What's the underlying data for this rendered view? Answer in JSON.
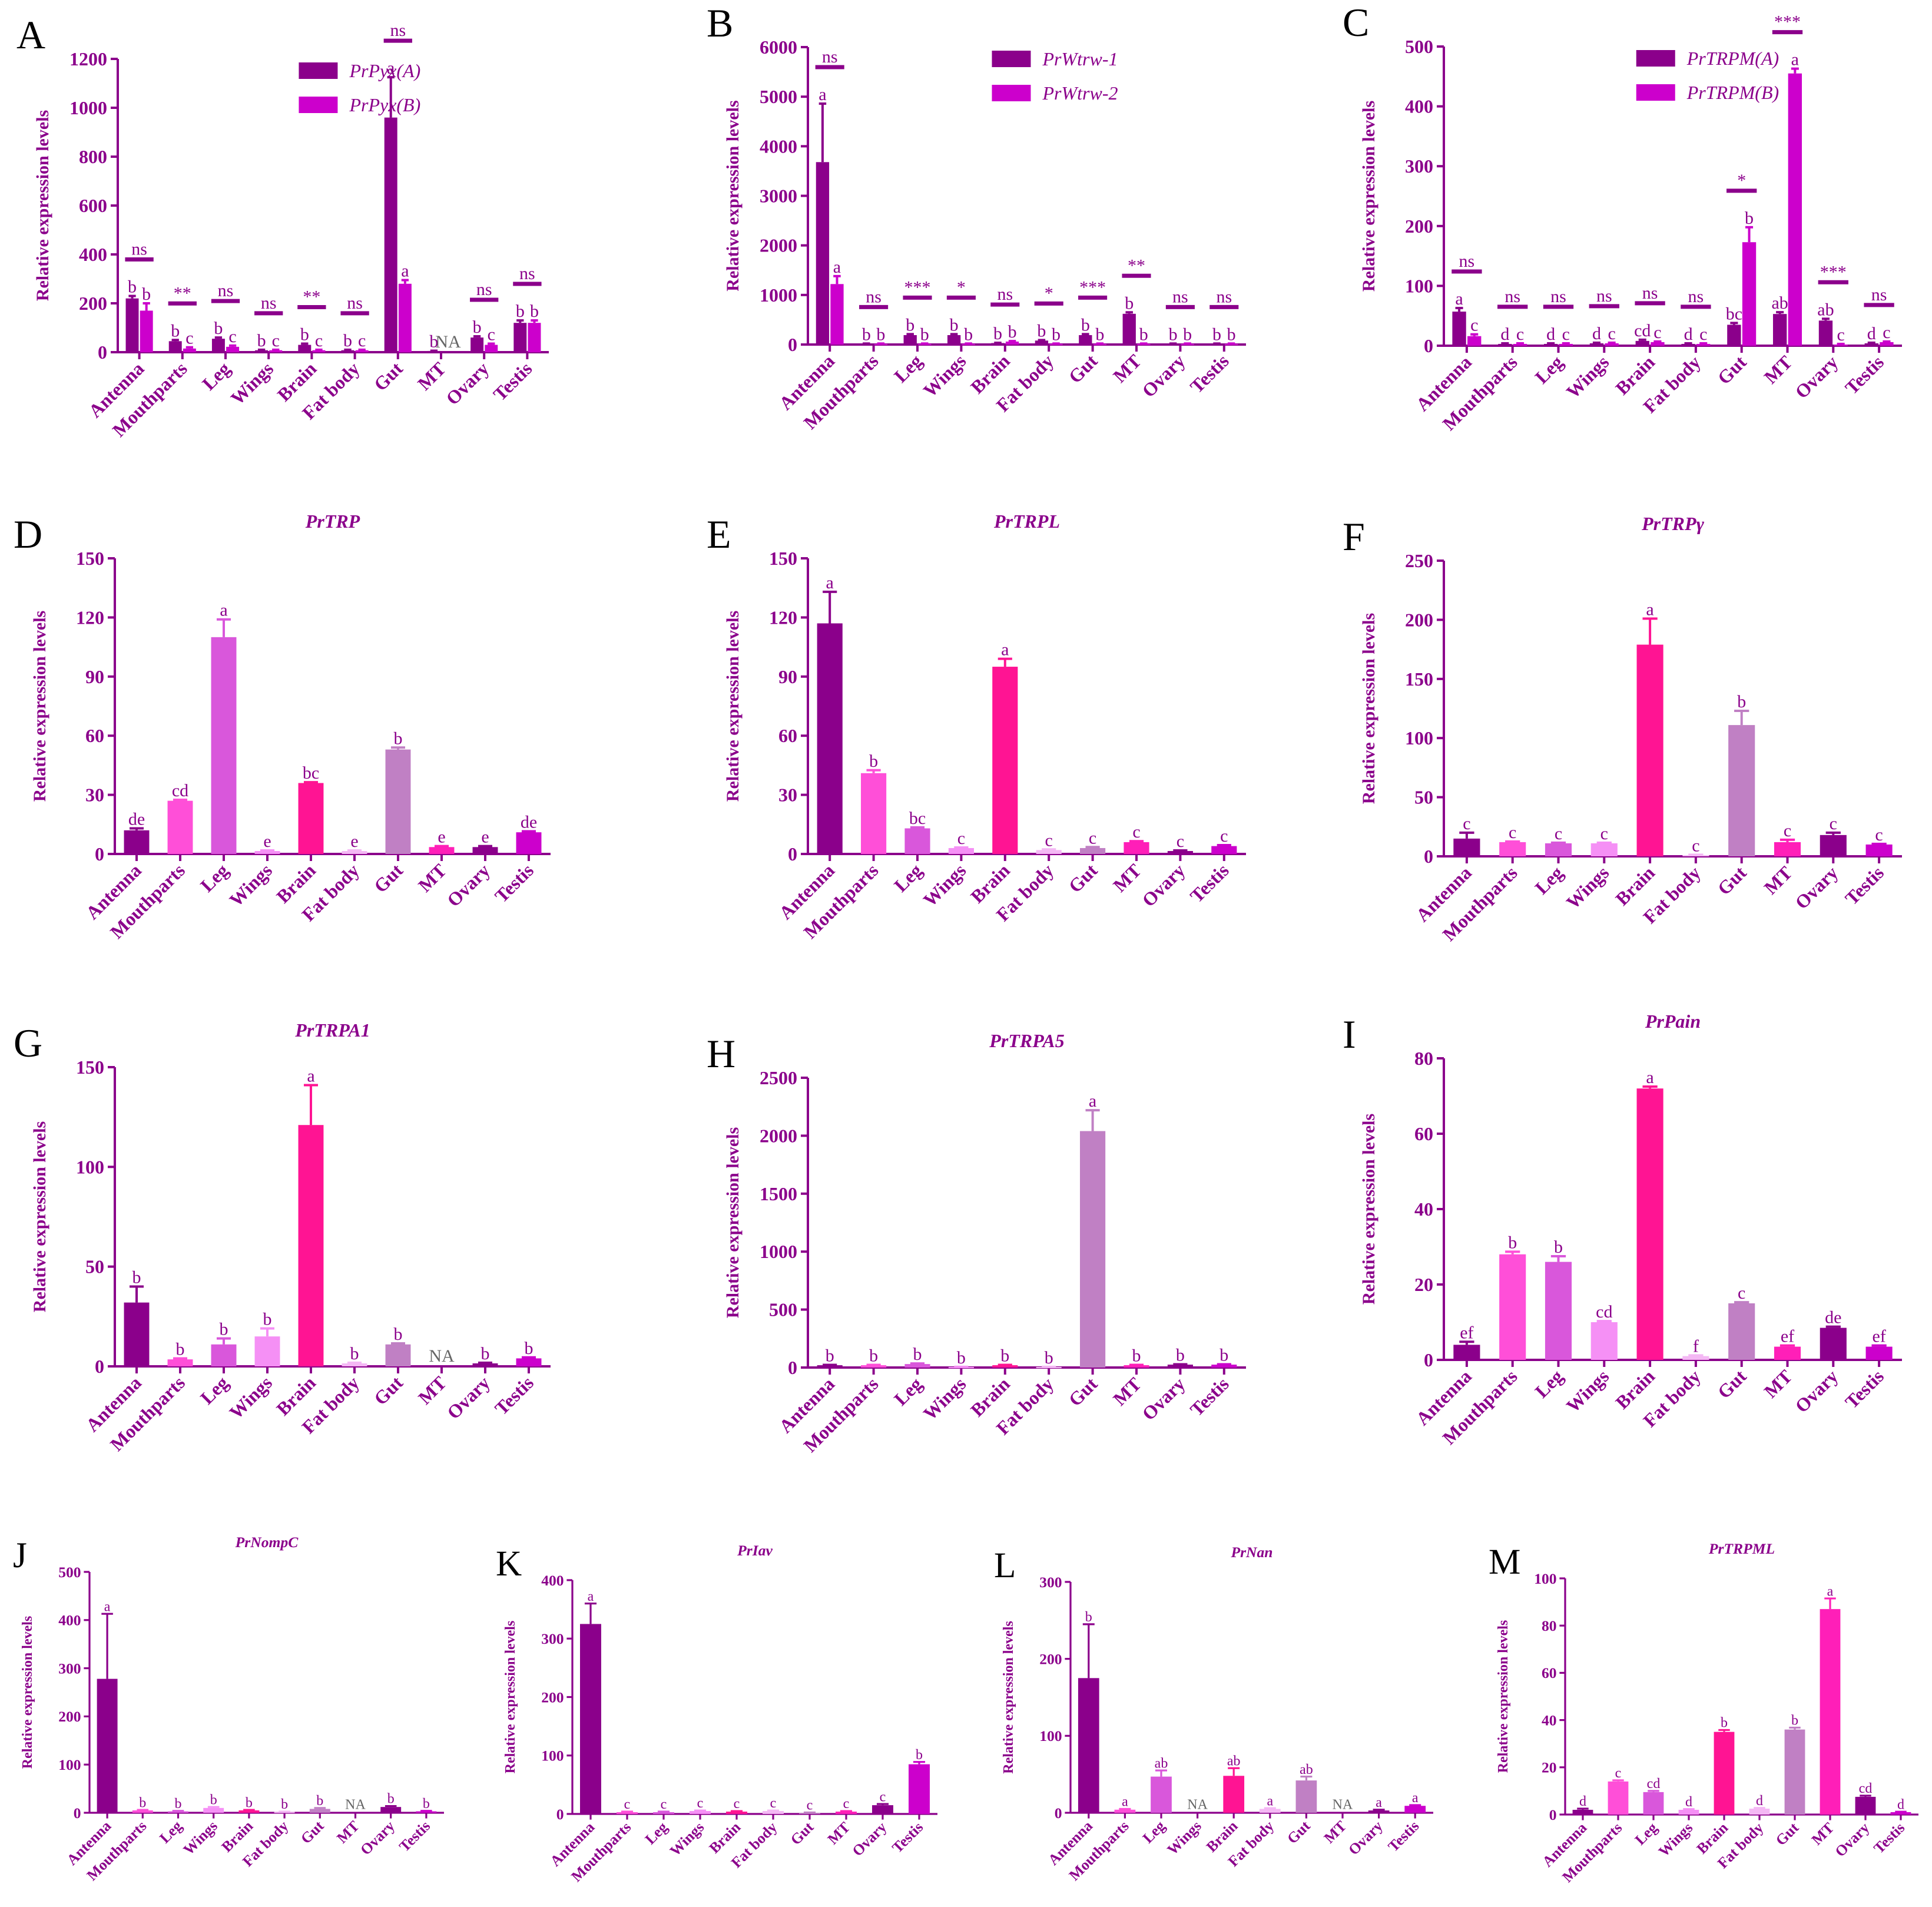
{
  "figure": {
    "colors": {
      "axis": "#8B008B",
      "text": "#8B008B",
      "letter": "#000000",
      "pair_a": "#8B008B",
      "pair_b": "#CC00CC",
      "tissue": {
        "Antenna": "#8B008B",
        "Mouthparts": "#FF4FD8",
        "Leg": "#D957DB",
        "Wings": "#F590F5",
        "Brain": "#FF1493",
        "Fat body": "#F4B8F4",
        "Gut": "#C080C4",
        "MT": "#FF1FB8",
        "Ovary": "#8B008B",
        "Testis": "#CC00CC"
      }
    },
    "ylabel": "Relative expression levels",
    "tissues": [
      "Antenna",
      "Mouthparts",
      "Leg",
      "Wings",
      "Brain",
      "Fat body",
      "Gut",
      "MT",
      "Ovary",
      "Testis"
    ]
  },
  "chart_data": [
    {
      "panel": "A",
      "type": "bar",
      "title": "",
      "ylim": [
        0,
        1200
      ],
      "yticks": [
        0,
        200,
        400,
        600,
        800,
        1000,
        1200
      ],
      "categories": [
        "Antenna",
        "Mouthparts",
        "Leg",
        "Wings",
        "Brain",
        "Fat body",
        "Gut",
        "MT",
        "Ovary",
        "Testis"
      ],
      "legend": [
        "PrPyx(A)",
        "PrPyx(B)"
      ],
      "series": [
        {
          "name": "PrPyx(A)",
          "values": [
            220,
            45,
            55,
            8,
            30,
            8,
            960,
            5,
            60,
            120
          ],
          "errors": [
            10,
            5,
            5,
            2,
            5,
            2,
            165,
            1,
            5,
            10
          ],
          "labels": [
            "b",
            "b",
            "b",
            "b",
            "b",
            "b",
            "a",
            "b",
            "b",
            "b"
          ]
        },
        {
          "name": "PrPyx(B)",
          "values": [
            170,
            15,
            22,
            8,
            8,
            8,
            280,
            0,
            30,
            120
          ],
          "errors": [
            30,
            5,
            5,
            2,
            2,
            2,
            15,
            0,
            5,
            10
          ],
          "labels": [
            "b",
            "c",
            "c",
            "c",
            "c",
            "c",
            "a",
            "NA",
            "c",
            "b"
          ]
        }
      ],
      "sig": [
        "ns",
        "**",
        "ns",
        "ns",
        "**",
        "ns",
        "ns",
        "",
        "ns",
        "ns"
      ]
    },
    {
      "panel": "B",
      "type": "bar",
      "title": "",
      "ylim": [
        0,
        6000
      ],
      "yticks": [
        0,
        1000,
        2000,
        3000,
        4000,
        5000,
        6000
      ],
      "categories": [
        "Antenna",
        "Mouthparts",
        "Leg",
        "Wings",
        "Brain",
        "Fat body",
        "Gut",
        "MT",
        "Ovary",
        "Testis"
      ],
      "legend": [
        "PrWtrw-1",
        "PrWtrw-2"
      ],
      "series": [
        {
          "name": "PrWtrw-1",
          "values": [
            3680,
            15,
            190,
            190,
            30,
            80,
            190,
            620,
            15,
            15
          ],
          "errors": [
            1180,
            5,
            20,
            20,
            5,
            10,
            20,
            30,
            5,
            5
          ],
          "labels": [
            "a",
            "b",
            "b",
            "b",
            "b",
            "b",
            "b",
            "b",
            "b",
            "b"
          ]
        },
        {
          "name": "PrWtrw-2",
          "values": [
            1220,
            15,
            15,
            15,
            60,
            15,
            15,
            15,
            15,
            15
          ],
          "errors": [
            160,
            5,
            5,
            5,
            10,
            5,
            5,
            5,
            5,
            5
          ],
          "labels": [
            "a",
            "b",
            "b",
            "b",
            "b",
            "b",
            "b",
            "b",
            "b",
            "b"
          ]
        }
      ],
      "sig": [
        "ns",
        "ns",
        "***",
        "*",
        "ns",
        "*",
        "***",
        "**",
        "ns",
        "ns"
      ]
    },
    {
      "panel": "C",
      "type": "bar",
      "title": "",
      "ylim": [
        0,
        500
      ],
      "yticks": [
        0,
        100,
        200,
        300,
        400,
        500
      ],
      "categories": [
        "Antenna",
        "Mouthparts",
        "Leg",
        "Wings",
        "Brain",
        "Fat body",
        "Gut",
        "MT",
        "Ovary",
        "Testis"
      ],
      "legend": [
        "PrTRPM(A)",
        "PrTRPM(B)"
      ],
      "series": [
        {
          "name": "PrTRPM(A)",
          "values": [
            57,
            3,
            3,
            4,
            8,
            3,
            35,
            53,
            42,
            4
          ],
          "errors": [
            6,
            1,
            1,
            1,
            2,
            1,
            3,
            3,
            3,
            1
          ],
          "labels": [
            "a",
            "d",
            "d",
            "d",
            "cd",
            "d",
            "bc",
            "ab",
            "ab",
            "d"
          ]
        },
        {
          "name": "PrTRPM(B)",
          "values": [
            16,
            3,
            3,
            4,
            6,
            3,
            173,
            455,
            2,
            6
          ],
          "errors": [
            3,
            1,
            1,
            1,
            1,
            1,
            25,
            8,
            1,
            1
          ],
          "labels": [
            "c",
            "c",
            "c",
            "c",
            "c",
            "c",
            "b",
            "a",
            "c",
            "c"
          ]
        }
      ],
      "sig": [
        "ns",
        "ns",
        "ns",
        "ns",
        "ns",
        "ns",
        "*",
        "***",
        "***",
        "ns"
      ]
    },
    {
      "panel": "D",
      "type": "bar",
      "title": "PrTRP",
      "ylim": [
        0,
        150
      ],
      "yticks": [
        0,
        30,
        60,
        90,
        120,
        150
      ],
      "categories": [
        "Antenna",
        "Mouthparts",
        "Leg",
        "Wings",
        "Brain",
        "Fat body",
        "Gut",
        "MT",
        "Ovary",
        "Testis"
      ],
      "values": [
        12,
        27,
        110,
        1.5,
        36,
        1.5,
        53,
        3.5,
        3.5,
        11
      ],
      "errors": [
        1,
        0.5,
        9,
        0.3,
        0.4,
        0.3,
        1,
        0.5,
        0.5,
        0.5
      ],
      "labels": [
        "de",
        "cd",
        "a",
        "e",
        "bc",
        "e",
        "b",
        "e",
        "e",
        "de"
      ]
    },
    {
      "panel": "E",
      "type": "bar",
      "title": "PrTRPL",
      "ylim": [
        0,
        150
      ],
      "yticks": [
        0,
        30,
        60,
        90,
        120,
        150
      ],
      "categories": [
        "Antenna",
        "Mouthparts",
        "Leg",
        "Wings",
        "Brain",
        "Fat body",
        "Gut",
        "MT",
        "Ovary",
        "Testis"
      ],
      "values": [
        117,
        41,
        13,
        3,
        95,
        2,
        3,
        6,
        1.5,
        4
      ],
      "errors": [
        16,
        1.5,
        0.5,
        0.3,
        4,
        0.3,
        0.5,
        0.5,
        0.3,
        0.5
      ],
      "labels": [
        "a",
        "b",
        "bc",
        "c",
        "a",
        "c",
        "c",
        "c",
        "c",
        "c"
      ]
    },
    {
      "panel": "F",
      "type": "bar",
      "title": "PrTRPγ",
      "ylim": [
        0,
        250
      ],
      "yticks": [
        0,
        50,
        100,
        150,
        200,
        250
      ],
      "categories": [
        "Antenna",
        "Mouthparts",
        "Leg",
        "Wings",
        "Brain",
        "Fat body",
        "Gut",
        "MT",
        "Ovary",
        "Testis"
      ],
      "values": [
        15,
        12,
        11,
        11,
        179,
        1,
        111,
        12,
        18,
        10
      ],
      "errors": [
        5,
        0.5,
        0.5,
        0.5,
        22,
        0.3,
        12,
        2,
        2,
        0.5
      ],
      "labels": [
        "c",
        "c",
        "c",
        "c",
        "a",
        "c",
        "b",
        "c",
        "c",
        "c"
      ]
    },
    {
      "panel": "G",
      "type": "bar",
      "title": "PrTRPA1",
      "ylim": [
        0,
        150
      ],
      "yticks": [
        0,
        50,
        100,
        150
      ],
      "categories": [
        "Antenna",
        "Mouthparts",
        "Leg",
        "Wings",
        "Brain",
        "Fat body",
        "Gut",
        "MT",
        "Ovary",
        "Testis"
      ],
      "values": [
        32,
        3.5,
        11,
        15,
        121,
        1.5,
        11,
        0,
        1.5,
        4
      ],
      "errors": [
        8,
        0.5,
        3,
        4,
        20,
        0.3,
        0.5,
        0,
        0.3,
        0.5
      ],
      "labels": [
        "b",
        "b",
        "b",
        "b",
        "a",
        "b",
        "b",
        "NA",
        "b",
        "b"
      ]
    },
    {
      "panel": "H",
      "type": "bar",
      "title": "PrTRPA5",
      "ylim": [
        0,
        2500
      ],
      "yticks": [
        0,
        500,
        1000,
        1500,
        2000,
        2500
      ],
      "categories": [
        "Antenna",
        "Mouthparts",
        "Leg",
        "Wings",
        "Brain",
        "Fat body",
        "Gut",
        "MT",
        "Ovary",
        "Testis"
      ],
      "values": [
        20,
        20,
        30,
        5,
        20,
        5,
        2040,
        20,
        25,
        25
      ],
      "errors": [
        3,
        3,
        5,
        1,
        3,
        1,
        180,
        3,
        3,
        3
      ],
      "labels": [
        "b",
        "b",
        "b",
        "b",
        "b",
        "b",
        "a",
        "b",
        "b",
        "b"
      ]
    },
    {
      "panel": "I",
      "type": "bar",
      "title": "PrPain",
      "ylim": [
        0,
        80
      ],
      "yticks": [
        0,
        20,
        40,
        60,
        80
      ],
      "categories": [
        "Antenna",
        "Mouthparts",
        "Leg",
        "Wings",
        "Brain",
        "Fat body",
        "Gut",
        "MT",
        "Ovary",
        "Testis"
      ],
      "values": [
        4,
        28,
        26,
        10,
        72,
        1,
        15,
        3.5,
        8.5,
        3.5
      ],
      "errors": [
        0.8,
        0.7,
        1.5,
        0.3,
        0.5,
        0.2,
        0.3,
        0.3,
        0.3,
        0.3
      ],
      "labels": [
        "ef",
        "b",
        "b",
        "cd",
        "a",
        "f",
        "c",
        "ef",
        "de",
        "ef"
      ]
    },
    {
      "panel": "J",
      "type": "bar",
      "title": "PrNompC",
      "ylim": [
        0,
        500
      ],
      "yticks": [
        0,
        100,
        200,
        300,
        400,
        500
      ],
      "categories": [
        "Antenna",
        "Mouthparts",
        "Leg",
        "Wings",
        "Brain",
        "Fat body",
        "Gut",
        "MT",
        "Ovary",
        "Testis"
      ],
      "values": [
        278,
        5,
        3,
        10,
        5,
        2,
        8,
        0,
        12,
        3
      ],
      "errors": [
        135,
        1,
        1,
        2,
        1,
        0.5,
        2,
        0,
        2,
        1
      ],
      "labels": [
        "a",
        "b",
        "b",
        "b",
        "b",
        "b",
        "b",
        "NA",
        "b",
        "b"
      ]
    },
    {
      "panel": "K",
      "type": "bar",
      "title": "PrIav",
      "ylim": [
        0,
        400
      ],
      "yticks": [
        0,
        100,
        200,
        300,
        400
      ],
      "categories": [
        "Antenna",
        "Mouthparts",
        "Leg",
        "Wings",
        "Brain",
        "Fat body",
        "Gut",
        "MT",
        "Ovary",
        "Testis"
      ],
      "values": [
        325,
        3,
        3,
        5,
        4,
        5,
        2,
        4,
        15,
        85
      ],
      "errors": [
        35,
        1,
        1,
        1,
        1,
        1,
        0.5,
        1,
        2,
        4
      ],
      "labels": [
        "a",
        "c",
        "c",
        "c",
        "c",
        "c",
        "c",
        "c",
        "c",
        "b"
      ]
    },
    {
      "panel": "L",
      "type": "bar",
      "title": "PrNan",
      "ylim": [
        0,
        300
      ],
      "yticks": [
        0,
        100,
        200,
        300
      ],
      "categories": [
        "Antenna",
        "Mouthparts",
        "Leg",
        "Wings",
        "Brain",
        "Fat body",
        "Gut",
        "MT",
        "Ovary",
        "Testis"
      ],
      "values": [
        175,
        4,
        47,
        0,
        48,
        5,
        42,
        0,
        3,
        9
      ],
      "errors": [
        70,
        1,
        8,
        0,
        10,
        1,
        5,
        0,
        1,
        1
      ],
      "labels": [
        "b",
        "a",
        "ab",
        "NA",
        "ab",
        "a",
        "ab",
        "NA",
        "a",
        "a"
      ]
    },
    {
      "panel": "M",
      "type": "bar",
      "title": "PrTRPML",
      "ylim": [
        0,
        100
      ],
      "yticks": [
        0,
        20,
        40,
        60,
        80,
        100
      ],
      "categories": [
        "Antenna",
        "Mouthparts",
        "Leg",
        "Wings",
        "Brain",
        "Fat body",
        "Gut",
        "MT",
        "Ovary",
        "Testis"
      ],
      "values": [
        2,
        14,
        9.5,
        2,
        35,
        2.5,
        36,
        87,
        7.5,
        1
      ],
      "errors": [
        0.5,
        0.5,
        0.5,
        0.3,
        0.8,
        0.3,
        0.8,
        4.5,
        0.5,
        0.2
      ],
      "labels": [
        "d",
        "c",
        "cd",
        "d",
        "b",
        "d",
        "b",
        "a",
        "cd",
        "d"
      ]
    }
  ]
}
